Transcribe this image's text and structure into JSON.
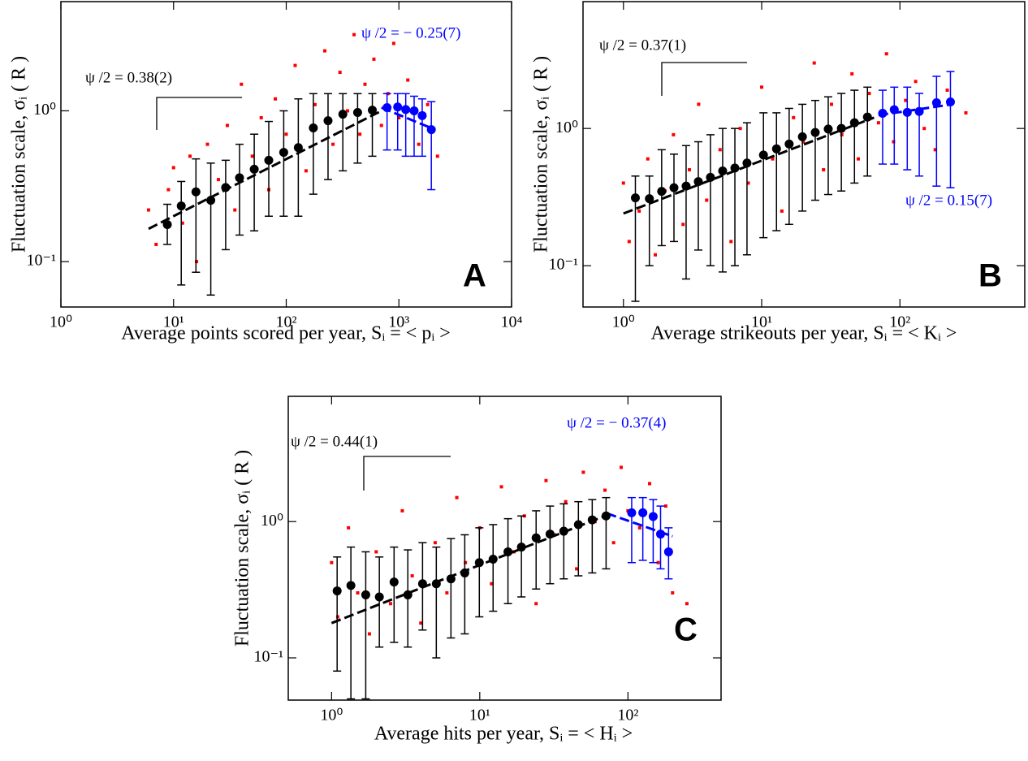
{
  "chart_data": [
    {
      "type": "scatter",
      "panel_label": "A",
      "xlabel": "Average points scored per year, Sᵢ = < pᵢ >",
      "ylabel": "Fluctuation scale, σᵢ ( R )",
      "log_x": true,
      "log_y": true,
      "xlim": [
        1,
        10000
      ],
      "ylim": [
        0.05,
        5.3
      ],
      "xticks": [
        {
          "value": 1,
          "label": "10⁰"
        },
        {
          "value": 10,
          "label": "10¹"
        },
        {
          "value": 100,
          "label": "10²"
        },
        {
          "value": 1000,
          "label": "10³"
        },
        {
          "value": 10000,
          "label": "10⁴"
        }
      ],
      "yticks": [
        {
          "value": 0.1,
          "label": "10⁻¹"
        },
        {
          "value": 1,
          "label": "10⁰"
        }
      ],
      "annotations": [
        {
          "text": "ψ /2 = 0.38(2)",
          "color": "#000000"
        },
        {
          "text": "ψ /2 = − 0.25(7)",
          "color": "#0000ff"
        }
      ],
      "series": [
        {
          "kind": "points",
          "color": "#ff0000",
          "x": [
            6,
            7,
            9,
            10,
            12,
            14,
            16,
            20,
            25,
            30,
            35,
            40,
            50,
            60,
            70,
            80,
            100,
            120,
            150,
            180,
            220,
            260,
            300,
            350,
            400,
            450,
            500,
            600,
            700,
            800,
            900,
            1000,
            1200,
            1500,
            1800,
            2200
          ],
          "values": [
            0.22,
            0.13,
            0.3,
            0.42,
            0.18,
            0.5,
            0.1,
            0.6,
            0.35,
            0.8,
            0.22,
            1.5,
            0.5,
            0.9,
            0.3,
            1.2,
            0.7,
            2.0,
            0.4,
            1.1,
            2.5,
            0.6,
            1.8,
            1.0,
            3.2,
            0.7,
            1.5,
            2.2,
            0.8,
            1.3,
            2.8,
            0.9,
            1.6,
            0.6,
            1.1,
            0.5
          ]
        },
        {
          "kind": "fit",
          "color": "#000000",
          "x": [
            6,
            700
          ],
          "values": [
            0.165,
            1.0
          ]
        },
        {
          "kind": "fit",
          "color": "#0000ff",
          "x": [
            700,
            2100
          ],
          "values": [
            1.05,
            0.75
          ]
        },
        {
          "kind": "errorbar",
          "color": "#000000",
          "x": [
            8.8,
            11.7,
            15.8,
            21.4,
            29,
            38.5,
            52,
            70,
            95,
            128,
            174,
            235,
            318,
            430,
            581
          ],
          "values": [
            0.176,
            0.234,
            0.29,
            0.255,
            0.31,
            0.36,
            0.41,
            0.47,
            0.53,
            0.57,
            0.77,
            0.86,
            0.95,
            0.975,
            1.01
          ],
          "lower": [
            0.13,
            0.07,
            0.085,
            0.06,
            0.12,
            0.15,
            0.16,
            0.2,
            0.2,
            0.2,
            0.28,
            0.35,
            0.4,
            0.45,
            0.5
          ],
          "upper": [
            0.24,
            0.34,
            0.48,
            0.45,
            0.47,
            0.6,
            0.7,
            0.85,
            1.0,
            1.2,
            1.3,
            1.3,
            1.3,
            1.3,
            1.3
          ]
        },
        {
          "kind": "errorbar",
          "color": "#0000ff",
          "x": [
            785,
            975,
            1150,
            1365,
            1610,
            1940
          ],
          "values": [
            1.05,
            1.06,
            1.02,
            1.0,
            0.93,
            0.75
          ],
          "lower": [
            0.55,
            0.55,
            0.5,
            0.5,
            0.5,
            0.3
          ],
          "upper": [
            1.3,
            1.3,
            1.3,
            1.25,
            1.2,
            1.15
          ]
        }
      ]
    },
    {
      "type": "scatter",
      "panel_label": "B",
      "xlabel": "Average strikeouts per year, Sᵢ = < Kᵢ >",
      "ylabel": "Fluctuation scale, σᵢ ( R )",
      "log_x": true,
      "log_y": true,
      "xlim": [
        0.51,
        800
      ],
      "ylim": [
        0.05,
        8.4
      ],
      "xticks": [
        {
          "value": 1,
          "label": "10⁰"
        },
        {
          "value": 10,
          "label": "10¹"
        },
        {
          "value": 100,
          "label": "10²"
        }
      ],
      "yticks": [
        {
          "value": 0.1,
          "label": "10⁻¹"
        },
        {
          "value": 1,
          "label": "10⁰"
        }
      ],
      "annotations": [
        {
          "text": "ψ /2 = 0.37(1)",
          "color": "#000000"
        },
        {
          "text": "ψ /2 = 0.15(7)",
          "color": "#0000ff"
        }
      ],
      "series": [
        {
          "kind": "points",
          "color": "#ff0000",
          "x": [
            1,
            1.1,
            1.3,
            1.5,
            1.7,
            2,
            2.3,
            2.7,
            3,
            3.5,
            4,
            5,
            6,
            7,
            8,
            10,
            12,
            14,
            17,
            20,
            24,
            28,
            32,
            38,
            45,
            50,
            60,
            70,
            80,
            90,
            110,
            130,
            150,
            180,
            220,
            300
          ],
          "values": [
            0.4,
            0.15,
            0.25,
            0.6,
            0.12,
            0.35,
            0.9,
            0.2,
            0.5,
            1.5,
            0.3,
            0.7,
            0.15,
            1.0,
            0.4,
            2.0,
            0.6,
            0.25,
            1.2,
            0.8,
            3.0,
            0.5,
            1.5,
            0.9,
            2.5,
            0.6,
            1.8,
            1.1,
            3.5,
            0.8,
            1.6,
            2.2,
            1.0,
            0.7,
            1.9,
            1.3
          ]
        },
        {
          "kind": "fit",
          "color": "#000000",
          "x": [
            1.0,
            65
          ],
          "values": [
            0.24,
            1.2
          ]
        },
        {
          "kind": "fit",
          "color": "#0000ff",
          "x": [
            70,
            240
          ],
          "values": [
            1.25,
            1.5
          ]
        },
        {
          "kind": "errorbar",
          "color": "#000000",
          "x": [
            1.22,
            1.54,
            1.89,
            2.32,
            2.84,
            3.48,
            4.26,
            5.22,
            6.4,
            7.83,
            10.3,
            12.8,
            15.8,
            19.7,
            24.4,
            30.3,
            37.7,
            46.9,
            58.2
          ],
          "values": [
            0.312,
            0.308,
            0.348,
            0.37,
            0.38,
            0.41,
            0.44,
            0.49,
            0.515,
            0.56,
            0.64,
            0.71,
            0.77,
            0.87,
            0.935,
            0.99,
            1.0,
            1.1,
            1.21
          ],
          "lower": [
            0.055,
            0.1,
            0.14,
            0.15,
            0.08,
            0.13,
            0.1,
            0.09,
            0.1,
            0.12,
            0.16,
            0.18,
            0.2,
            0.25,
            0.3,
            0.33,
            0.35,
            0.4,
            0.45
          ],
          "upper": [
            0.45,
            0.45,
            0.7,
            0.65,
            0.75,
            0.8,
            0.9,
            1.0,
            1.0,
            1.1,
            1.3,
            1.3,
            1.4,
            1.5,
            1.6,
            1.7,
            1.8,
            1.9,
            2.0
          ]
        },
        {
          "kind": "errorbar",
          "color": "#0000ff",
          "x": [
            75,
            91,
            113,
            138,
            184,
            232
          ],
          "values": [
            1.29,
            1.37,
            1.31,
            1.33,
            1.54,
            1.56
          ],
          "lower": [
            0.55,
            0.55,
            0.5,
            0.45,
            0.38,
            0.37
          ],
          "upper": [
            1.9,
            2.0,
            2.0,
            1.8,
            2.4,
            2.6
          ]
        }
      ]
    },
    {
      "type": "scatter",
      "panel_label": "C",
      "xlabel": "Average hits per year, Sᵢ = < Hᵢ >",
      "ylabel": "Fluctuation scale, σᵢ ( R )",
      "log_x": true,
      "log_y": true,
      "xlim": [
        0.51,
        425
      ],
      "ylim": [
        0.049,
        8.3
      ],
      "xticks": [
        {
          "value": 1,
          "label": "10⁰"
        },
        {
          "value": 10,
          "label": "10¹"
        },
        {
          "value": 100,
          "label": "10²"
        }
      ],
      "yticks": [
        {
          "value": 0.1,
          "label": "10⁻¹"
        },
        {
          "value": 1,
          "label": "10⁰"
        }
      ],
      "annotations": [
        {
          "text": "ψ /2 = 0.44(1)",
          "color": "#000000"
        },
        {
          "text": "ψ /2 = − 0.37(4)",
          "color": "#0000ff"
        }
      ],
      "series": [
        {
          "kind": "points",
          "color": "#ff0000",
          "x": [
            1,
            1.1,
            1.3,
            1.5,
            1.8,
            2,
            2.5,
            3,
            3.5,
            4,
            5,
            6,
            7,
            8,
            10,
            12,
            14,
            17,
            20,
            24,
            28,
            32,
            38,
            45,
            50,
            60,
            70,
            80,
            90,
            100,
            120,
            140,
            160,
            180,
            200,
            250
          ],
          "values": [
            0.5,
            0.2,
            0.9,
            0.3,
            0.15,
            0.6,
            0.25,
            1.2,
            0.4,
            0.18,
            0.7,
            0.3,
            1.5,
            0.5,
            0.9,
            0.35,
            1.8,
            0.6,
            1.1,
            0.25,
            2.0,
            0.8,
            1.4,
            0.45,
            2.3,
            1.0,
            1.7,
            0.7,
            2.5,
            1.2,
            0.9,
            1.9,
            0.5,
            1.3,
            0.3,
            0.25
          ]
        },
        {
          "kind": "fit",
          "color": "#000000",
          "x": [
            1.0,
            70
          ],
          "values": [
            0.18,
            1.1
          ]
        },
        {
          "kind": "fit",
          "color": "#0000ff",
          "x": [
            72,
            200
          ],
          "values": [
            1.15,
            0.78
          ]
        },
        {
          "kind": "errorbar",
          "color": "#000000",
          "x": [
            1.09,
            1.35,
            1.7,
            2.1,
            2.64,
            3.27,
            4.11,
            5.09,
            6.39,
            7.92,
            9.93,
            12.3,
            15.5,
            19.1,
            24,
            29.8,
            36.9,
            46.3,
            57.4,
            71.2
          ],
          "values": [
            0.31,
            0.34,
            0.29,
            0.28,
            0.36,
            0.29,
            0.35,
            0.35,
            0.38,
            0.42,
            0.5,
            0.53,
            0.6,
            0.65,
            0.76,
            0.81,
            0.85,
            0.95,
            1.03,
            1.1
          ],
          "lower": [
            0.08,
            0.05,
            0.05,
            0.12,
            0.13,
            0.12,
            0.16,
            0.1,
            0.14,
            0.15,
            0.2,
            0.22,
            0.25,
            0.28,
            0.32,
            0.35,
            0.38,
            0.4,
            0.42,
            0.45
          ],
          "upper": [
            0.55,
            0.65,
            0.6,
            0.55,
            0.65,
            0.62,
            0.7,
            0.65,
            0.75,
            0.8,
            0.9,
            0.95,
            1.05,
            1.1,
            1.2,
            1.3,
            1.35,
            1.4,
            1.45,
            1.5
          ]
        },
        {
          "kind": "errorbar",
          "color": "#0000ff",
          "x": [
            106,
            126,
            148,
            166,
            188
          ],
          "values": [
            1.16,
            1.16,
            1.09,
            0.81,
            0.6
          ],
          "lower": [
            0.5,
            0.52,
            0.5,
            0.45,
            0.38
          ],
          "upper": [
            1.5,
            1.5,
            1.45,
            1.3,
            0.9
          ]
        }
      ]
    }
  ]
}
